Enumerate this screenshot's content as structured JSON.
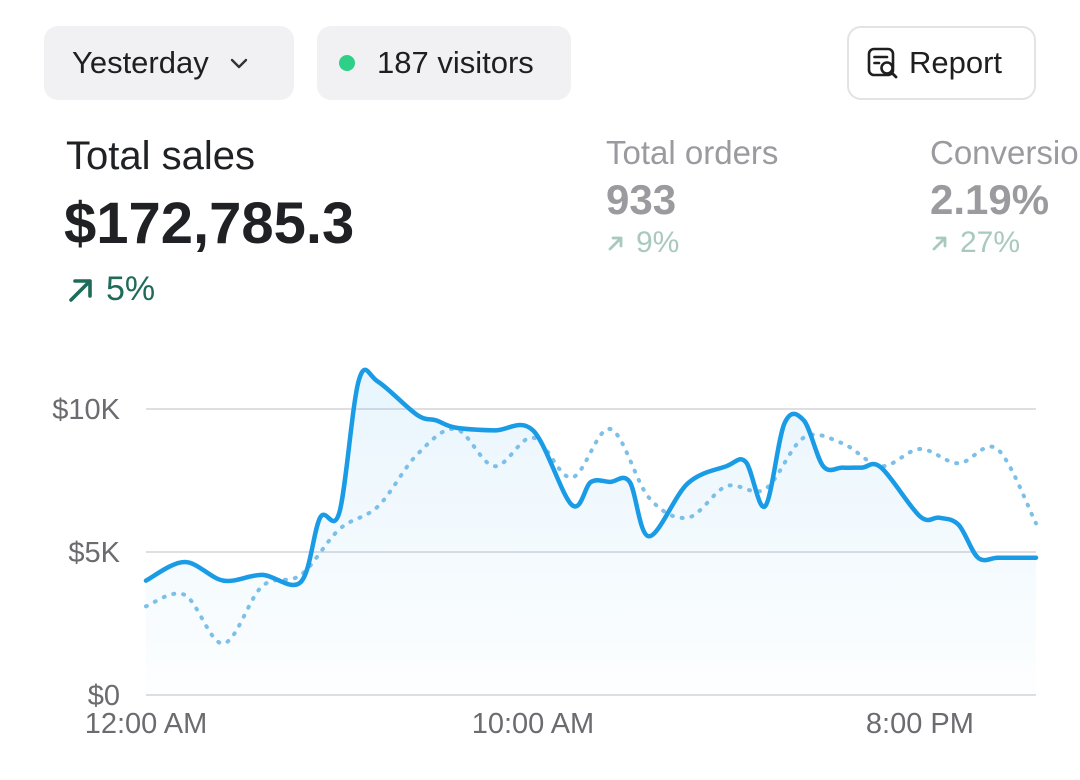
{
  "toolbar": {
    "date_range": "Yesterday",
    "visitors": "187 visitors",
    "report": "Report"
  },
  "metrics": {
    "total_sales": {
      "label": "Total sales",
      "value": "$172,785.3",
      "change": "5%"
    },
    "total_orders": {
      "label": "Total orders",
      "value": "933",
      "change": "9%"
    },
    "conversion": {
      "label": "Conversion",
      "value": "2.19%",
      "change": "27%"
    }
  },
  "colors": {
    "primary_line": "#1a9be6",
    "comparison_line": "#7cc0e8",
    "positive_change": "#1e6b5a",
    "visitor_dot": "#2ecf86"
  },
  "chart_data": {
    "type": "line",
    "ylim": [
      0,
      10000
    ],
    "yticks": [
      {
        "value": 0,
        "label": "$0"
      },
      {
        "value": 5000,
        "label": "$5K"
      },
      {
        "value": 10000,
        "label": "$10K"
      }
    ],
    "xlim": [
      0,
      23
    ],
    "xticks": [
      {
        "value": 0,
        "label": "12:00 AM"
      },
      {
        "value": 10,
        "label": "10:00 AM"
      },
      {
        "value": 20,
        "label": "8:00 PM"
      }
    ],
    "grid": true,
    "series": [
      {
        "style": "solid",
        "x": [
          0,
          1,
          2,
          3,
          4,
          4.5,
          5,
          5.5,
          6,
          7,
          7.5,
          8,
          9,
          10,
          11,
          11.5,
          12,
          12.5,
          13,
          14,
          15,
          15.5,
          16,
          16.5,
          17,
          17.5,
          18,
          18.5,
          19,
          20,
          20.5,
          21,
          21.5,
          22,
          22.5,
          23
        ],
        "values": [
          4000,
          4650,
          4000,
          4200,
          3950,
          6200,
          6400,
          11000,
          10950,
          9800,
          9600,
          9350,
          9250,
          9250,
          6650,
          7450,
          7450,
          7450,
          5550,
          7400,
          8000,
          8150,
          6600,
          9500,
          9600,
          8000,
          7950,
          7950,
          7950,
          6250,
          6200,
          5950,
          4800,
          4800,
          4800,
          4800
        ]
      },
      {
        "style": "dotted",
        "x": [
          0,
          1,
          2,
          3,
          4,
          5,
          6,
          7,
          8,
          9,
          10,
          11,
          12,
          13,
          14,
          15,
          16,
          17,
          18,
          19,
          20,
          21,
          22,
          23
        ],
        "values": [
          3100,
          3500,
          1800,
          3800,
          4200,
          5800,
          6600,
          8400,
          9300,
          8000,
          9000,
          7600,
          9300,
          6900,
          6200,
          7300,
          7200,
          9000,
          8800,
          8000,
          8600,
          8100,
          8600,
          6000
        ]
      }
    ]
  }
}
